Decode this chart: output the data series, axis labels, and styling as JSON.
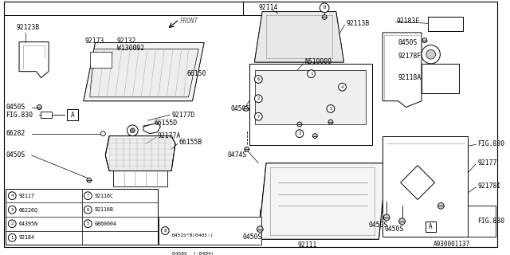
{
  "bg_color": "#ffffff",
  "line_color": "#000000",
  "diagram_number": "A930001137",
  "fs": 5.5,
  "fs_small": 4.5,
  "legend_items_left": [
    [
      "1",
      "92184"
    ],
    [
      "2",
      "64395N"
    ],
    [
      "3",
      "66226Q"
    ],
    [
      "4",
      "92117"
    ]
  ],
  "legend_items_right": [
    [
      "",
      ""
    ],
    [
      "5",
      "0860004"
    ],
    [
      "6",
      "92116B"
    ],
    [
      "7",
      "92116C"
    ]
  ]
}
